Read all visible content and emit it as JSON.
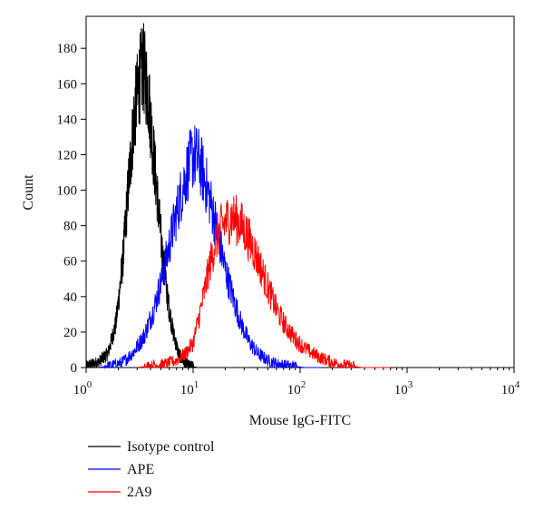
{
  "chart_data": {
    "type": "line",
    "subtype": "histogram",
    "xlabel": "Mouse IgG-FITC",
    "ylabel": "Count",
    "xscale": "log",
    "xlim": [
      1,
      10000
    ],
    "ylim": [
      0,
      198
    ],
    "x_ticks": [
      {
        "value": 1,
        "base": "10",
        "exp": "0"
      },
      {
        "value": 10,
        "base": "10",
        "exp": "1"
      },
      {
        "value": 100,
        "base": "10",
        "exp": "2"
      },
      {
        "value": 1000,
        "base": "10",
        "exp": "3"
      },
      {
        "value": 10000,
        "base": "10",
        "exp": "4"
      }
    ],
    "y_ticks": [
      0,
      20,
      40,
      60,
      80,
      100,
      120,
      140,
      160,
      180
    ],
    "legend_position": "bottom-left",
    "series": [
      {
        "name": "Isotype control",
        "color": "#000000",
        "x": [
          1.0,
          1.3,
          1.6,
          1.9,
          2.2,
          2.5,
          2.8,
          3.1,
          3.4,
          3.8,
          4.2,
          4.7,
          5.2,
          5.8,
          6.5,
          7.3,
          8.2,
          9.3,
          11,
          13
        ],
        "y": [
          1,
          3,
          8,
          25,
          60,
          105,
          140,
          160,
          170,
          155,
          125,
          92,
          62,
          38,
          20,
          8,
          3,
          1,
          0,
          0
        ]
      },
      {
        "name": "APE",
        "color": "#0000ff",
        "x": [
          1.3,
          1.7,
          2.2,
          2.8,
          3.5,
          4.3,
          5.2,
          6.3,
          7.5,
          8.7,
          10,
          11.5,
          13,
          15,
          17.5,
          20,
          24,
          28,
          33,
          40,
          50,
          62,
          80,
          110,
          160
        ],
        "y": [
          0,
          1,
          3,
          9,
          18,
          33,
          52,
          75,
          95,
          110,
          120,
          116,
          105,
          90,
          72,
          55,
          38,
          25,
          15,
          8,
          4,
          2,
          1,
          0,
          0
        ]
      },
      {
        "name": "2A9",
        "color": "#ff0000",
        "x": [
          3,
          4,
          5.5,
          7,
          8.5,
          10,
          12,
          14,
          16,
          18,
          20,
          23,
          27,
          31,
          36,
          42,
          50,
          60,
          72,
          90,
          115,
          150,
          200,
          280,
          380,
          500,
          700
        ],
        "y": [
          0,
          1,
          2,
          4,
          8,
          14,
          35,
          55,
          70,
          78,
          82,
          85,
          82,
          76,
          68,
          58,
          45,
          33,
          24,
          16,
          10,
          6,
          3,
          1,
          0,
          0,
          0
        ]
      }
    ]
  }
}
